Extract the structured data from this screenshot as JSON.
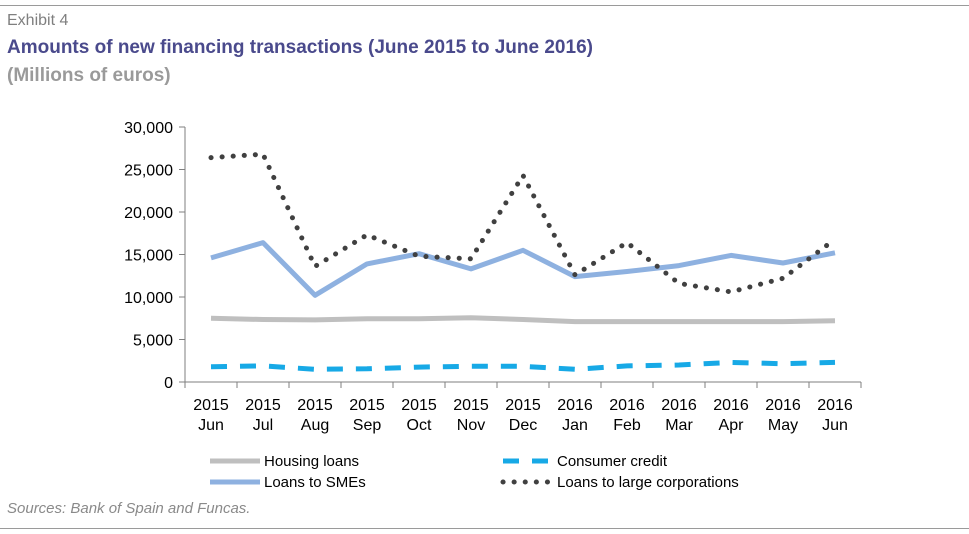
{
  "header": {
    "exhibit": "Exhibit 4",
    "title": "Amounts of new financing transactions (June 2015 to June 2016)",
    "subtitle": "(Millions of euros)"
  },
  "footer": {
    "source": "Sources: Bank of Spain and Funcas."
  },
  "chart_data": {
    "type": "line",
    "title": "Amounts of new financing transactions (June 2015 to June 2016)",
    "subtitle": "(Millions of euros)",
    "categories": [
      [
        "2015",
        "Jun"
      ],
      [
        "2015",
        "Jul"
      ],
      [
        "2015",
        "Aug"
      ],
      [
        "2015",
        "Sep"
      ],
      [
        "2015",
        "Oct"
      ],
      [
        "2015",
        "Nov"
      ],
      [
        "2015",
        "Dec"
      ],
      [
        "2016",
        "Jan"
      ],
      [
        "2016",
        "Feb"
      ],
      [
        "2016",
        "Mar"
      ],
      [
        "2016",
        "Apr"
      ],
      [
        "2016",
        "May"
      ],
      [
        "2016",
        "Jun"
      ]
    ],
    "ylim": [
      0,
      30000
    ],
    "yticks": [
      0,
      5000,
      10000,
      15000,
      20000,
      25000,
      30000
    ],
    "ytick_labels": [
      "0",
      "5,000",
      "10,000",
      "15,000",
      "20,000",
      "25,000",
      "30,000"
    ],
    "grid": false,
    "legend_position": "bottom",
    "series": [
      {
        "name": "Housing loans",
        "style": "solid",
        "color": "#bfbfbf",
        "values": [
          7500,
          7350,
          7300,
          7450,
          7450,
          7550,
          7350,
          7100,
          7100,
          7100,
          7100,
          7100,
          7200
        ]
      },
      {
        "name": "Consumer credit",
        "style": "dashed",
        "color": "#17a9e6",
        "values": [
          1800,
          1900,
          1500,
          1550,
          1750,
          1850,
          1850,
          1500,
          1900,
          2000,
          2300,
          2150,
          2300
        ]
      },
      {
        "name": "Loans to SMEs",
        "style": "solid",
        "color": "#8eb1e0",
        "values": [
          14600,
          16400,
          10200,
          13900,
          15100,
          13300,
          15500,
          12400,
          13000,
          13700,
          14900,
          14000,
          15200
        ]
      },
      {
        "name": "Loans to large corporations",
        "style": "dotted",
        "color": "#404040",
        "values": [
          26400,
          26800,
          13600,
          17300,
          14800,
          14500,
          24300,
          12600,
          16400,
          11600,
          10600,
          12200,
          16800
        ]
      }
    ]
  }
}
